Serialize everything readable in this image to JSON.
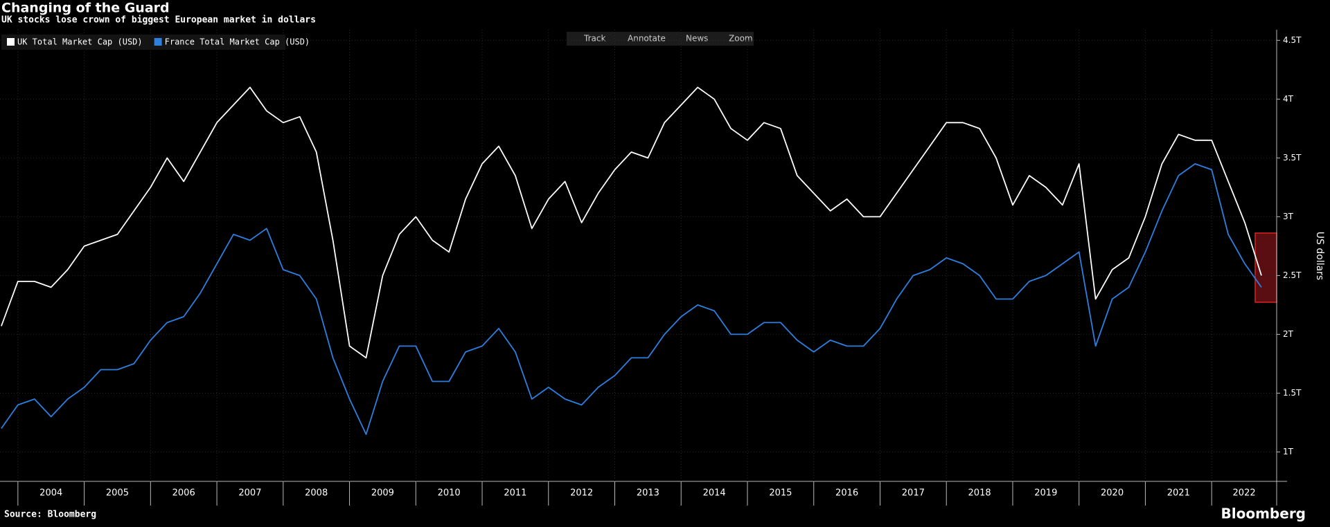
{
  "header": {
    "title": "Changing of the Guard",
    "subtitle": "UK stocks lose crown of biggest European market in dollars"
  },
  "toolbar": [
    "Track",
    "Annotate",
    "News",
    "Zoom"
  ],
  "footer": {
    "source": "Source: Bloomberg",
    "brand": "Bloomberg"
  },
  "chart_data": {
    "type": "line",
    "ylabel": "US dollars",
    "x": [
      2003.75,
      2004,
      2004.25,
      2004.5,
      2004.75,
      2005,
      2005.25,
      2005.5,
      2005.75,
      2006,
      2006.25,
      2006.5,
      2006.75,
      2007,
      2007.25,
      2007.5,
      2007.75,
      2008,
      2008.25,
      2008.5,
      2008.75,
      2009,
      2009.25,
      2009.5,
      2009.75,
      2010,
      2010.25,
      2010.5,
      2010.75,
      2011,
      2011.25,
      2011.5,
      2011.75,
      2012,
      2012.25,
      2012.5,
      2012.75,
      2013,
      2013.25,
      2013.5,
      2013.75,
      2014,
      2014.25,
      2014.5,
      2014.75,
      2015,
      2015.25,
      2015.5,
      2015.75,
      2016,
      2016.25,
      2016.5,
      2016.75,
      2017,
      2017.25,
      2017.5,
      2017.75,
      2018,
      2018.25,
      2018.5,
      2018.75,
      2019,
      2019.25,
      2019.5,
      2019.75,
      2020,
      2020.25,
      2020.5,
      2020.75,
      2021,
      2021.25,
      2021.5,
      2021.75,
      2022,
      2022.25,
      2022.5,
      2022.75
    ],
    "series": [
      {
        "name": "UK Total Market Cap (USD)",
        "color": "#ffffff",
        "values": [
          2070000000000.0,
          2450000000000.0,
          2450000000000.0,
          2400000000000.0,
          2550000000000.0,
          2750000000000.0,
          2800000000000.0,
          2850000000000.0,
          3050000000000.0,
          3250000000000.0,
          3500000000000.0,
          3300000000000.0,
          3550000000000.0,
          3800000000000.0,
          3950000000000.0,
          4100000000000.0,
          3900000000000.0,
          3800000000000.0,
          3850000000000.0,
          3550000000000.0,
          2800000000000.0,
          1900000000000.0,
          1800000000000.0,
          2500000000000.0,
          2850000000000.0,
          3000000000000.0,
          2800000000000.0,
          2700000000000.0,
          3150000000000.0,
          3450000000000.0,
          3600000000000.0,
          3350000000000.0,
          2900000000000.0,
          3150000000000.0,
          3300000000000.0,
          2950000000000.0,
          3200000000000.0,
          3400000000000.0,
          3550000000000.0,
          3500000000000.0,
          3800000000000.0,
          3950000000000.0,
          4100000000000.0,
          4000000000000.0,
          3750000000000.0,
          3650000000000.0,
          3800000000000.0,
          3750000000000.0,
          3350000000000.0,
          3200000000000.0,
          3050000000000.0,
          3150000000000.0,
          3000000000000.0,
          3000000000000.0,
          3200000000000.0,
          3400000000000.0,
          3600000000000.0,
          3800000000000.0,
          3800000000000.0,
          3750000000000.0,
          3500000000000.0,
          3100000000000.0,
          3350000000000.0,
          3250000000000.0,
          3100000000000.0,
          3450000000000.0,
          2300000000000.0,
          2550000000000.0,
          2650000000000.0,
          3000000000000.0,
          3450000000000.0,
          3700000000000.0,
          3650000000000.0,
          3650000000000.0,
          3300000000000.0,
          2950000000000.0,
          2500000000000.0
        ]
      },
      {
        "name": "France Total Market Cap (USD)",
        "color": "#2d7fe0",
        "values": [
          1200000000000.0,
          1400000000000.0,
          1450000000000.0,
          1300000000000.0,
          1450000000000.0,
          1550000000000.0,
          1700000000000.0,
          1700000000000.0,
          1750000000000.0,
          1950000000000.0,
          2100000000000.0,
          2150000000000.0,
          2350000000000.0,
          2600000000000.0,
          2850000000000.0,
          2800000000000.0,
          2900000000000.0,
          2550000000000.0,
          2500000000000.0,
          2300000000000.0,
          1800000000000.0,
          1450000000000.0,
          1150000000000.0,
          1600000000000.0,
          1900000000000.0,
          1900000000000.0,
          1600000000000.0,
          1600000000000.0,
          1850000000000.0,
          1900000000000.0,
          2050000000000.0,
          1850000000000.0,
          1450000000000.0,
          1550000000000.0,
          1450000000000.0,
          1400000000000.0,
          1550000000000.0,
          1650000000000.0,
          1800000000000.0,
          1800000000000.0,
          2000000000000.0,
          2150000000000.0,
          2250000000000.0,
          2200000000000.0,
          2000000000000.0,
          2000000000000.0,
          2100000000000.0,
          2100000000000.0,
          1950000000000.0,
          1850000000000.0,
          1950000000000.0,
          1900000000000.0,
          1900000000000.0,
          2050000000000.0,
          2300000000000.0,
          2500000000000.0,
          2550000000000.0,
          2650000000000.0,
          2600000000000.0,
          2500000000000.0,
          2300000000000.0,
          2300000000000.0,
          2450000000000.0,
          2500000000000.0,
          2600000000000.0,
          2700000000000.0,
          1900000000000.0,
          2300000000000.0,
          2400000000000.0,
          2700000000000.0,
          3050000000000.0,
          3350000000000.0,
          3450000000000.0,
          3400000000000.0,
          2850000000000.0,
          2600000000000.0,
          2400000000000.0
        ]
      }
    ],
    "xlim": [
      2003.73,
      2022.98
    ],
    "xticks": [
      2004,
      2005,
      2006,
      2007,
      2008,
      2009,
      2010,
      2011,
      2012,
      2013,
      2014,
      2015,
      2016,
      2017,
      2018,
      2019,
      2020,
      2021,
      2022
    ],
    "ylim": [
      750000000000.0,
      4590000000000.0
    ],
    "yticks": [
      {
        "value": 1000000000000.0,
        "label": "1T"
      },
      {
        "value": 1500000000000.0,
        "label": "1.5T"
      },
      {
        "value": 2000000000000.0,
        "label": "2T"
      },
      {
        "value": 2500000000000.0,
        "label": "2.5T"
      },
      {
        "value": 3000000000000.0,
        "label": "3T"
      },
      {
        "value": 3500000000000.0,
        "label": "3.5T"
      },
      {
        "value": 4000000000000.0,
        "label": "4T"
      },
      {
        "value": 4500000000000.0,
        "label": "4.5T"
      }
    ],
    "grid": true,
    "legend": "top-left"
  }
}
